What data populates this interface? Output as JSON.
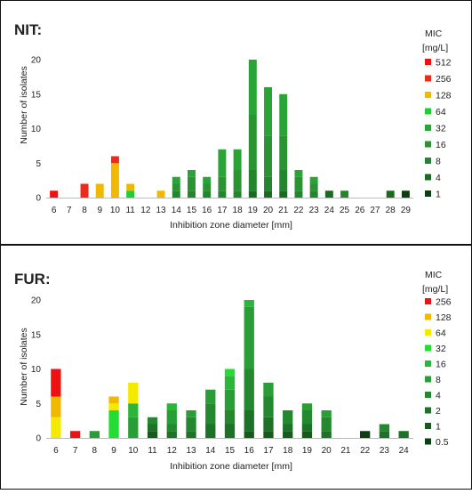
{
  "colors": {
    "0.5": "#0d3d12",
    "1": "#154f18",
    "2": "#1b6a22",
    "4": "#1e7a2a",
    "8": "#228a2f",
    "16": "#2a9a35",
    "32": "#33a83a",
    "64": "#22cc33",
    "128": "#ffd400",
    "256": "#ee2a1a",
    "512": "#ee0000"
  },
  "chart_data": [
    {
      "type": "bar",
      "title": "NIT:",
      "xlabel": "Inhibition zone diameter [mm]",
      "ylabel": "Number of isolates",
      "ylim": [
        0,
        20
      ],
      "yticks": [
        "0",
        "5",
        "10",
        "15",
        "20"
      ],
      "legend_title": "MIC",
      "legend_unit": "[mg/L]",
      "legend_placement": "right",
      "categories": [
        "6",
        "7",
        "8",
        "9",
        "10",
        "11",
        "12",
        "13",
        "14",
        "15",
        "16",
        "17",
        "18",
        "19",
        "20",
        "21",
        "22",
        "23",
        "24",
        "25",
        "26",
        "27",
        "28",
        "29"
      ],
      "series": [
        {
          "name": "1",
          "values": [
            0,
            0,
            0,
            0,
            0,
            0,
            0,
            0,
            0,
            0,
            0,
            0,
            0,
            0,
            0,
            0,
            0,
            0,
            0,
            0,
            0,
            0,
            0,
            1
          ]
        },
        {
          "name": "4",
          "values": [
            0,
            0,
            0,
            0,
            0,
            0,
            0,
            0,
            0,
            0,
            0,
            0,
            0,
            1,
            1,
            1,
            0,
            0,
            1,
            0,
            0,
            0,
            1,
            0
          ]
        },
        {
          "name": "8",
          "values": [
            0,
            0,
            0,
            0,
            0,
            0,
            0,
            0,
            1,
            1,
            1,
            1,
            1,
            3,
            2,
            3,
            1,
            1,
            0,
            1,
            0,
            0,
            0,
            0
          ]
        },
        {
          "name": "16",
          "values": [
            0,
            0,
            0,
            0,
            0,
            0,
            0,
            0,
            1,
            2,
            1,
            2,
            3,
            8,
            6,
            5,
            2,
            1,
            0,
            0,
            0,
            0,
            0,
            0
          ]
        },
        {
          "name": "32",
          "values": [
            0,
            0,
            0,
            0,
            0,
            0,
            0,
            0,
            1,
            1,
            1,
            4,
            3,
            8,
            7,
            6,
            1,
            1,
            0,
            0,
            0,
            0,
            0,
            0
          ]
        },
        {
          "name": "64",
          "values": [
            0,
            0,
            0,
            0,
            0,
            1,
            0,
            0,
            0,
            0,
            0,
            0,
            0,
            0,
            0,
            0,
            0,
            0,
            0,
            0,
            0,
            0,
            0,
            0
          ]
        },
        {
          "name": "128",
          "values": [
            0,
            0,
            0,
            2,
            5,
            1,
            0,
            1,
            0,
            0,
            0,
            0,
            0,
            0,
            0,
            0,
            0,
            0,
            0,
            0,
            0,
            0,
            0,
            0
          ]
        },
        {
          "name": "256",
          "values": [
            0,
            0,
            2,
            0,
            1,
            0,
            0,
            0,
            0,
            0,
            0,
            0,
            0,
            0,
            0,
            0,
            0,
            0,
            0,
            0,
            0,
            0,
            0,
            0
          ]
        },
        {
          "name": "512",
          "values": [
            1,
            0,
            0,
            0,
            0,
            0,
            0,
            0,
            0,
            0,
            0,
            0,
            0,
            0,
            0,
            0,
            0,
            0,
            0,
            0,
            0,
            0,
            0,
            0
          ]
        }
      ]
    },
    {
      "type": "bar",
      "title": "FUR:",
      "xlabel": "Inhibition zone diameter [mm]",
      "ylabel": "Number of isolates",
      "ylim": [
        0,
        20
      ],
      "yticks": [
        "0",
        "5",
        "10",
        "15",
        "20"
      ],
      "legend_title": "MIC",
      "legend_unit": "[mg/L]",
      "legend_placement": "right",
      "categories": [
        "6",
        "7",
        "8",
        "9",
        "10",
        "11",
        "12",
        "13",
        "14",
        "15",
        "16",
        "17",
        "18",
        "19",
        "20",
        "21",
        "22",
        "23",
        "24"
      ],
      "series": [
        {
          "name": "0.5",
          "values": [
            0,
            0,
            0,
            0,
            0,
            0,
            0,
            0,
            0,
            0,
            0,
            0,
            0,
            0,
            0,
            0,
            1,
            0,
            0
          ]
        },
        {
          "name": "1",
          "values": [
            0,
            0,
            0,
            0,
            0,
            1,
            0,
            0,
            0,
            0,
            1,
            1,
            1,
            1,
            0,
            0,
            0,
            0,
            0
          ]
        },
        {
          "name": "2",
          "values": [
            0,
            0,
            0,
            0,
            0,
            1,
            1,
            1,
            2,
            2,
            3,
            2,
            1,
            1,
            1,
            0,
            0,
            1,
            1
          ]
        },
        {
          "name": "4",
          "values": [
            0,
            0,
            0,
            0,
            0,
            1,
            1,
            2,
            3,
            2,
            6,
            3,
            2,
            2,
            2,
            0,
            0,
            1,
            0
          ]
        },
        {
          "name": "8",
          "values": [
            0,
            0,
            1,
            0,
            3,
            0,
            2,
            1,
            2,
            3,
            9,
            2,
            0,
            1,
            1,
            0,
            0,
            0,
            0
          ]
        },
        {
          "name": "16",
          "values": [
            0,
            0,
            0,
            0,
            2,
            0,
            1,
            0,
            0,
            2,
            1,
            0,
            0,
            0,
            0,
            0,
            0,
            0,
            0
          ]
        },
        {
          "name": "32",
          "values": [
            0,
            0,
            0,
            4,
            0,
            0,
            0,
            0,
            0,
            1,
            0,
            0,
            0,
            0,
            0,
            0,
            0,
            0,
            0
          ]
        },
        {
          "name": "64",
          "values": [
            3,
            0,
            0,
            1,
            3,
            0,
            0,
            0,
            0,
            0,
            0,
            0,
            0,
            0,
            0,
            0,
            0,
            0,
            0
          ]
        },
        {
          "name": "128",
          "values": [
            3,
            0,
            0,
            1,
            0,
            0,
            0,
            0,
            0,
            0,
            0,
            0,
            0,
            0,
            0,
            0,
            0,
            0,
            0
          ]
        },
        {
          "name": "256",
          "values": [
            4,
            1,
            0,
            0,
            0,
            0,
            0,
            0,
            0,
            0,
            0,
            0,
            0,
            0,
            0,
            0,
            0,
            0,
            0
          ]
        }
      ]
    }
  ],
  "legend_colors": {
    "nit": {
      "512": "#ee1111",
      "256": "#ee2a1a",
      "128": "#f2b800",
      "64": "#22cc33",
      "32": "#2aa437",
      "16": "#2a9433",
      "8": "#23862e",
      "4": "#1b6a22",
      "1": "#0f3d12"
    },
    "fur": {
      "256": "#ee1111",
      "128": "#f2b800",
      "64": "#f4ea00",
      "32": "#22dd33",
      "16": "#2bb63a",
      "8": "#2a9e36",
      "4": "#24882f",
      "2": "#1c7226",
      "1": "#155c1c",
      "0.5": "#0d3d12"
    }
  }
}
